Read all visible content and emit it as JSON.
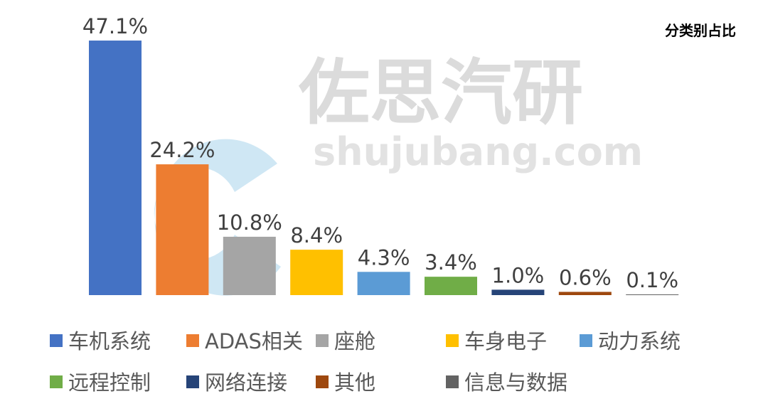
{
  "chart_data": {
    "type": "bar",
    "title": "分类别占比",
    "categories": [
      "车机系统",
      "ADAS相关",
      "座舱",
      "车身电子",
      "动力系统",
      "远程控制",
      "网络连接",
      "其他",
      "信息与数据"
    ],
    "values": [
      47.1,
      24.2,
      10.8,
      8.4,
      4.3,
      3.4,
      1.0,
      0.6,
      0.1
    ],
    "labels": [
      "47.1%",
      "24.2%",
      "10.8%",
      "8.4%",
      "4.3%",
      "3.4%",
      "1.0%",
      "0.6%",
      "0.1%"
    ],
    "colors": [
      "#4472C4",
      "#ED7D31",
      "#A5A5A5",
      "#FFC000",
      "#5B9BD5",
      "#70AD47",
      "#264478",
      "#9E480E",
      "#636363"
    ],
    "xlabel": "",
    "ylabel": "",
    "ylim": [
      0,
      50
    ],
    "grid": false,
    "legend_position": "bottom"
  },
  "watermark": {
    "brand": "佐思汽研",
    "site": "shujubang.com"
  }
}
